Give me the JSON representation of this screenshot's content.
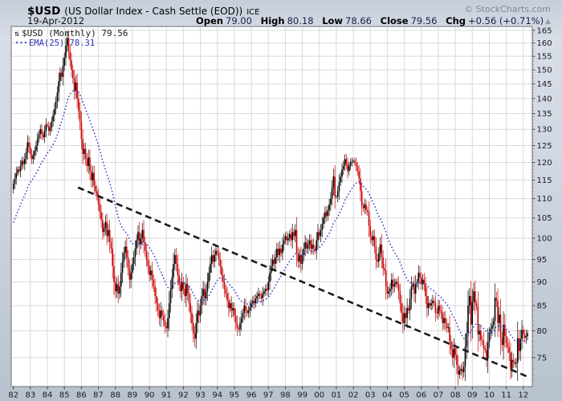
{
  "header": {
    "symbol": "$USD",
    "description": "(US Dollar Index - Cash Settle (EOD))",
    "exchange": "ICE",
    "copyright": "© StockCharts.com",
    "date": "19-Apr-2012",
    "quote": {
      "open_label": "Open",
      "open": "79.00",
      "high_label": "High",
      "high": "80.18",
      "low_label": "Low",
      "low": "78.66",
      "close_label": "Close",
      "close": "79.56",
      "chg_label": "Chg",
      "chg": "+0.56 (+0.71%)",
      "direction_icon": "up-triangle",
      "direction_glyph": "▲"
    }
  },
  "legend": {
    "series_icon": "⇅",
    "series_label": "$USD (Monthly) 79.56",
    "ema_prefix": "···",
    "ema_label": "EMA(25) 78.31"
  },
  "chart_data": {
    "type": "bar",
    "subtype": "monthly-ohlc-candles-with-ema-overlay",
    "title": "$USD (US Dollar Index - Cash Settle (EOD)) ICE",
    "x_start": "1982-01",
    "x_end": "2012-04",
    "x_tick_labels": [
      "82",
      "83",
      "84",
      "85",
      "86",
      "87",
      "88",
      "89",
      "90",
      "91",
      "92",
      "93",
      "94",
      "95",
      "96",
      "97",
      "98",
      "99",
      "00",
      "01",
      "02",
      "03",
      "04",
      "05",
      "06",
      "07",
      "08",
      "09",
      "10",
      "11",
      "12"
    ],
    "y_ticks": [
      165,
      160,
      155,
      150,
      145,
      140,
      135,
      130,
      125,
      120,
      115,
      110,
      105,
      100,
      95,
      90,
      85,
      80,
      75
    ],
    "y_scale": "log",
    "ylim": [
      69.9,
      166
    ],
    "grid": true,
    "legend_position": "top-left-inside",
    "monthly_closes": [
      114,
      115.5,
      117,
      118,
      117.5,
      119,
      120.5,
      119.5,
      121,
      123,
      126,
      124.5,
      122.5,
      121,
      122,
      123.5,
      125,
      127,
      128.5,
      130,
      128.5,
      127.5,
      129.5,
      131.5,
      131,
      129.5,
      130.5,
      132.5,
      134.5,
      136.5,
      139,
      142,
      146,
      149,
      147.5,
      151.5,
      154.5,
      159,
      162,
      157,
      153.5,
      150,
      147,
      142.5,
      145.5,
      140,
      136,
      132.5,
      127,
      122.5,
      124,
      121,
      119,
      121.5,
      117.5,
      115,
      117,
      113.5,
      112,
      111,
      108.5,
      106.5,
      104.5,
      101.5,
      102.5,
      104,
      100.5,
      102,
      99,
      97.5,
      93.5,
      90,
      88,
      89.5,
      87.5,
      89,
      92,
      94.5,
      96.5,
      98,
      95.5,
      93,
      90.5,
      92,
      94,
      95.5,
      97.5,
      99.5,
      101.5,
      98.5,
      100,
      102,
      99,
      97,
      95,
      93.5,
      91.5,
      92.5,
      90.5,
      89,
      87,
      85.5,
      84,
      82.5,
      84,
      83,
      82,
      81,
      80.5,
      82.5,
      85.5,
      88.5,
      91,
      94,
      96,
      94,
      91.5,
      89.5,
      88,
      90,
      88.5,
      87,
      89.5,
      87.5,
      85.5,
      83.5,
      81.5,
      79.5,
      78.5,
      81.5,
      84,
      83,
      85,
      87,
      88.5,
      86.5,
      88,
      90,
      92,
      94,
      96,
      94.5,
      96,
      97,
      96.5,
      95,
      93.5,
      91.5,
      90,
      88.5,
      87.5,
      86,
      84.5,
      85.5,
      84,
      84.5,
      83,
      81.5,
      80.5,
      80.3,
      81.5,
      82.5,
      83.5,
      85,
      84,
      83.5,
      84,
      84.7,
      85.5,
      86,
      85.5,
      86.5,
      87,
      87.5,
      87,
      86.5,
      87.5,
      88,
      88.5,
      88.2,
      90,
      92,
      93.5,
      95,
      94,
      95.5,
      97.5,
      96,
      97.5,
      96.5,
      98.5,
      99.5,
      100.5,
      99.5,
      100,
      101,
      99.5,
      101.5,
      100.5,
      102,
      96.5,
      94.5,
      96,
      94,
      96,
      97.5,
      99,
      97.5,
      98.5,
      99.5,
      97.5,
      98.5,
      97.5,
      97,
      99.5,
      101.5,
      100.5,
      102,
      103.5,
      105,
      106.5,
      105.5,
      107,
      108.5,
      110,
      113,
      116,
      110.5,
      110.5,
      112,
      114.5,
      116,
      118,
      119,
      121,
      119.5,
      117.5,
      119,
      120,
      120.3,
      120.5,
      120,
      119,
      117.5,
      115.5,
      112,
      108,
      107.5,
      108.5,
      107,
      106.5,
      103,
      100.5,
      99.5,
      100.5,
      98,
      95,
      94.5,
      96.5,
      98.5,
      95.5,
      93,
      92.5,
      89,
      87.5,
      88,
      88.5,
      90.5,
      89,
      89.5,
      90,
      89.5,
      88,
      85.5,
      83.5,
      81.5,
      83.5,
      82.5,
      84.5,
      84,
      86.5,
      89,
      89.5,
      87.5,
      89.5,
      90,
      92,
      91,
      89.5,
      90.5,
      89.5,
      87,
      84.5,
      85.5,
      85,
      85.5,
      86,
      85.5,
      83.5,
      83.4,
      85,
      84,
      83.5,
      81.5,
      82.5,
      81.5,
      80.5,
      80.7,
      78,
      76.5,
      75,
      76.7,
      75.5,
      73.7,
      72,
      72.7,
      73,
      72.4,
      73.4,
      77,
      79.5,
      85,
      87,
      81.2,
      85.8,
      88,
      85.5,
      84.8,
      79.3,
      80,
      78.3,
      78.1,
      76.7,
      76.4,
      74.8,
      77.9,
      79.5,
      80.4,
      81.1,
      81.9,
      86.6,
      86,
      81.5,
      83.2,
      78.7,
      77.3,
      81.2,
      79,
      77.7,
      76.9,
      75.9,
      73,
      74.6,
      74.3,
      73.9,
      74.1,
      78.6,
      76.2,
      78.4,
      80.2,
      79.3,
      78.7,
      79,
      79.56
    ],
    "last_close": 79.56,
    "ema_period": 25,
    "ema_start_value": 103,
    "ema_last": 78.31,
    "trendline": {
      "style": "dashed",
      "from": {
        "year": 1985.8,
        "price": 113
      },
      "to": {
        "year": 2012.36,
        "price": 71.5
      }
    },
    "colors": {
      "up": "#000000",
      "down": "#cc0000",
      "ema": "#3b3bc4",
      "trendline": "#1a1a1a",
      "grid": "#d8dade",
      "plot_bg": "#ffffff",
      "plot_border": "#6f6f6f",
      "axis_text": "#1a1a1a"
    }
  }
}
